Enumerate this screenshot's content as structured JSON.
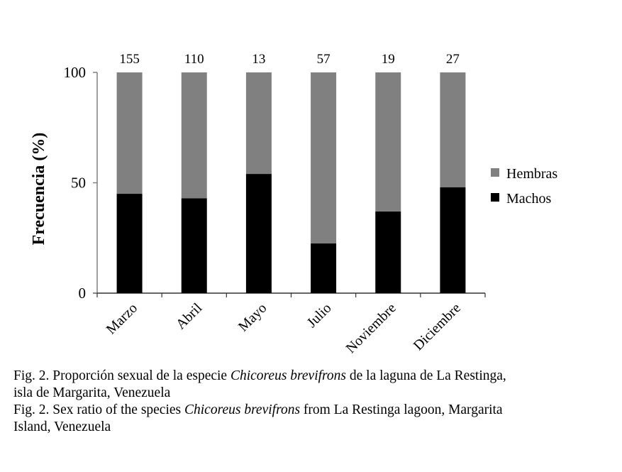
{
  "chart_data": {
    "type": "bar",
    "stacked": true,
    "title": "",
    "xlabel": "",
    "ylabel": "Frecuencia (%)",
    "ylim": [
      0,
      100
    ],
    "yticks": [
      0,
      50,
      100
    ],
    "grid": false,
    "legend_position": "right",
    "categories": [
      "Marzo",
      "Abril",
      "Mayo",
      "Julio",
      "Noviembre",
      "Diciembre"
    ],
    "sample_sizes": [
      "155",
      "110",
      "13",
      "57",
      "19",
      "27"
    ],
    "series": [
      {
        "name": "Machos",
        "color": "#000000",
        "values": [
          45,
          43,
          54,
          22.5,
          37,
          48
        ]
      },
      {
        "name": "Hembras",
        "color": "#808080",
        "values": [
          55,
          57,
          46,
          77.5,
          63,
          52
        ]
      }
    ],
    "legend": [
      {
        "label": "Hembras",
        "color": "#808080"
      },
      {
        "label": "Machos",
        "color": "#000000"
      }
    ]
  },
  "caption": {
    "es": {
      "prefix": "Fig. 2. Proporción sexual de la especie ",
      "species": "Chicoreus brevifrons",
      "suffix_line1": " de la laguna de La Restinga,",
      "line2": "isla de Margarita, Venezuela"
    },
    "en": {
      "prefix": "Fig. 2. Sex ratio of the species ",
      "species": "Chicoreus brevifrons",
      "suffix_line1": " from La Restinga lagoon, Margarita",
      "line2": "Island, Venezuela"
    }
  },
  "colors": {
    "axis": "#808080",
    "hembras": "#808080",
    "machos": "#000000"
  }
}
